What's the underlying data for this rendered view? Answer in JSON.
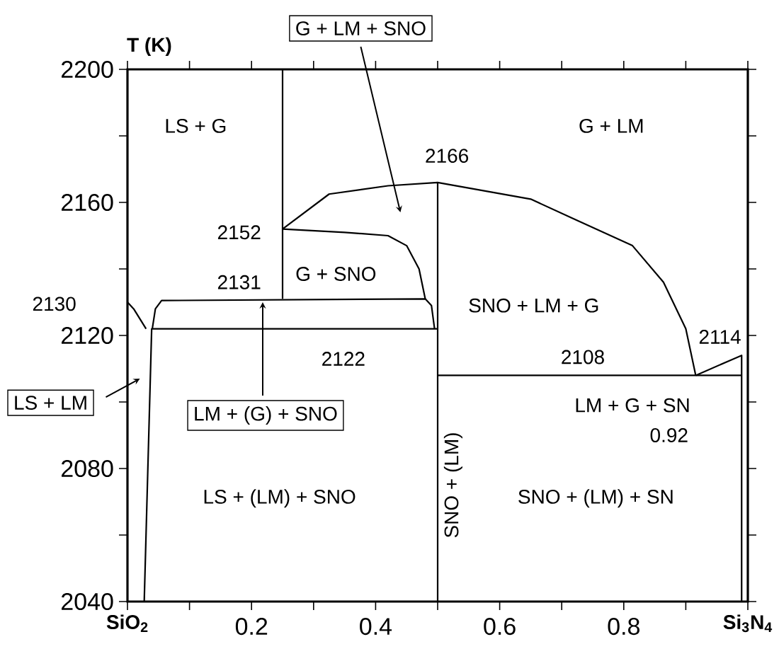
{
  "chart_data": {
    "type": "line",
    "ylabel": "T (K)",
    "xlim": [
      0,
      1
    ],
    "ylim": [
      2040,
      2200
    ],
    "xticks": [
      {
        "value": 0,
        "label": null
      },
      {
        "value": 0.1,
        "label": null
      },
      0.2,
      {
        "value": 0.3,
        "label": null
      },
      0.4,
      {
        "value": 0.5,
        "label": null
      },
      0.6,
      {
        "value": 0.7,
        "label": null
      },
      0.8,
      {
        "value": 0.9,
        "label": null
      },
      {
        "value": 1,
        "label": null
      }
    ],
    "yticks": [
      2040,
      {
        "value": 2060,
        "label": null
      },
      2080,
      {
        "value": 2100,
        "label": null
      },
      2120,
      {
        "value": 2140,
        "label": null
      },
      2160,
      {
        "value": 2180,
        "label": null
      },
      2200
    ],
    "grid": false,
    "series": [
      {
        "color": "#000000",
        "x": [
          0.25,
          0.25
        ],
        "values": [
          2131,
          2200
        ]
      },
      {
        "color": "#000000",
        "x": [
          0.5,
          0.5
        ],
        "values": [
          2040,
          2166
        ]
      },
      {
        "color": "#000000",
        "x": [
          0.04,
          0.045,
          0.055,
          0.48,
          0.49,
          0.495,
          0.5,
          0.039,
          0.027
        ],
        "values": [
          2122,
          2128,
          2130.5,
          2131,
          2129,
          2122,
          2122,
          2122,
          2040
        ]
      },
      {
        "color": "#000000",
        "x": [
          0.5,
          0.99
        ],
        "values": [
          2108,
          2108
        ]
      },
      {
        "color": "#000000",
        "x": [
          0,
          0.01,
          0.02,
          0.03
        ],
        "values": [
          2130,
          2128,
          2125,
          2122
        ]
      },
      {
        "color": "#000000",
        "x": [
          0.25,
          0.325,
          0.42,
          0.5,
          0.65,
          0.72,
          0.814,
          0.864,
          0.9,
          0.916
        ],
        "values": [
          2152,
          2162.5,
          2165,
          2166,
          2161,
          2155,
          2147,
          2136,
          2122,
          2108
        ]
      },
      {
        "color": "#000000",
        "x": [
          0.25,
          0.35,
          0.42,
          0.45,
          0.47,
          0.48
        ],
        "values": [
          2152,
          2151,
          2150,
          2147,
          2140,
          2131
        ]
      },
      {
        "color": "#000000",
        "x": [
          0.916,
          0.99,
          0.99
        ],
        "values": [
          2108,
          2114,
          2040
        ]
      }
    ],
    "annotations": [
      "LS + G",
      "G + LM",
      "2166",
      "2152",
      "G + SNO",
      "2131",
      "2130",
      "SNO + LM + G",
      "2114",
      "2108",
      "2122",
      "LM + G + SN",
      "0.92",
      "SNO + (LM)",
      "LS + (LM) + SNO",
      "SNO + (LM) + SN",
      "G + LM + SNO",
      "LS + LM",
      {
        "text": "LM + (G) + SNO",
        "x": 0.218,
        "y": 2130
      },
      "SiO$_{2}$",
      "Si$_{3}$N$_{4}$"
    ]
  }
}
